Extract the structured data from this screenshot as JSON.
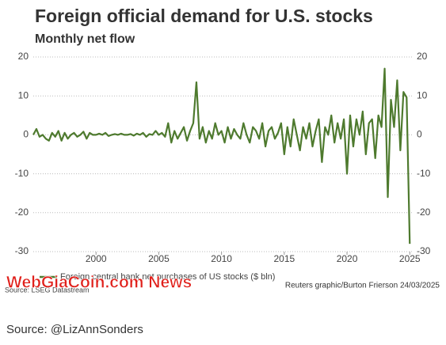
{
  "chart_data": {
    "type": "line",
    "title": "Foreign official demand for U.S. stocks",
    "subtitle": "Monthly net flow",
    "source": "Source: LSEG Datastream",
    "credit": "Reuters graphic/Burton Frierson 24/03/2025",
    "x": [
      1995,
      1995.25,
      1995.5,
      1995.75,
      1996,
      1996.25,
      1996.5,
      1996.75,
      1997,
      1997.25,
      1997.5,
      1997.75,
      1998,
      1998.25,
      1998.5,
      1998.75,
      1999,
      1999.25,
      1999.5,
      1999.75,
      2000,
      2000.25,
      2000.5,
      2000.75,
      2001,
      2001.25,
      2001.5,
      2001.75,
      2002,
      2002.25,
      2002.5,
      2002.75,
      2003,
      2003.25,
      2003.5,
      2003.75,
      2004,
      2004.25,
      2004.5,
      2004.75,
      2005,
      2005.25,
      2005.5,
      2005.75,
      2006,
      2006.25,
      2006.5,
      2006.75,
      2007,
      2007.25,
      2007.5,
      2007.75,
      2008,
      2008.25,
      2008.5,
      2008.75,
      2009,
      2009.25,
      2009.5,
      2009.75,
      2010,
      2010.25,
      2010.5,
      2010.75,
      2011,
      2011.25,
      2011.5,
      2011.75,
      2012,
      2012.25,
      2012.5,
      2012.75,
      2013,
      2013.25,
      2013.5,
      2013.75,
      2014,
      2014.25,
      2014.5,
      2014.75,
      2015,
      2015.25,
      2015.5,
      2015.75,
      2016,
      2016.25,
      2016.5,
      2016.75,
      2017,
      2017.25,
      2017.5,
      2017.75,
      2018,
      2018.25,
      2018.5,
      2018.75,
      2019,
      2019.25,
      2019.5,
      2019.75,
      2020,
      2020.25,
      2020.5,
      2020.75,
      2021,
      2021.25,
      2021.5,
      2021.75,
      2022,
      2022.25,
      2022.5,
      2022.75,
      2023,
      2023.25,
      2023.5,
      2023.75,
      2024,
      2024.25,
      2024.5,
      2024.75,
      2025
    ],
    "series": [
      {
        "name": "Foreign central bank net purchases of US stocks ($ bln)",
        "color": "#4e7a2e",
        "values": [
          0,
          1.5,
          -0.5,
          0,
          -1,
          -1.5,
          0.5,
          -0.5,
          1,
          -1.5,
          0.5,
          -1,
          0,
          0.5,
          -0.5,
          0,
          0.8,
          -1,
          0.5,
          0,
          0,
          0.3,
          0,
          0.5,
          -0.3,
          0,
          0.2,
          0,
          0.3,
          0,
          0,
          0.2,
          -0.2,
          0.3,
          0,
          0.5,
          -0.5,
          0.2,
          0,
          1,
          0,
          0.5,
          -0.5,
          3,
          -2,
          1,
          -1,
          0.5,
          2,
          -1.5,
          1,
          3,
          13.5,
          -1,
          2,
          -2,
          1,
          -1,
          3,
          0,
          1,
          -2,
          2,
          -1,
          1.5,
          0,
          -1,
          3,
          0,
          -2,
          2,
          1,
          -1,
          3,
          -3,
          1,
          2,
          -1,
          0.5,
          3,
          -5,
          2,
          -3,
          4,
          0,
          -4,
          2,
          -1,
          3,
          -3,
          1,
          4,
          -7,
          2,
          0,
          5,
          -2,
          3,
          -1,
          4,
          -10,
          5,
          -3,
          4,
          0,
          6,
          -5,
          3,
          4,
          -6,
          5,
          2,
          17,
          -16,
          9,
          2,
          14,
          -4,
          11,
          9.6,
          -28
        ]
      }
    ],
    "xlim": [
      1995,
      2025.3
    ],
    "xticks": [
      2000,
      2005,
      2010,
      2015,
      2020,
      2025
    ],
    "ylim": [
      -30,
      20
    ],
    "yticks": [
      -30,
      -20,
      -10,
      0,
      10,
      20
    ],
    "grid": true,
    "watermark": "WebGiaCoin.com News",
    "footer": "Source:  @LizAnnSonders"
  }
}
